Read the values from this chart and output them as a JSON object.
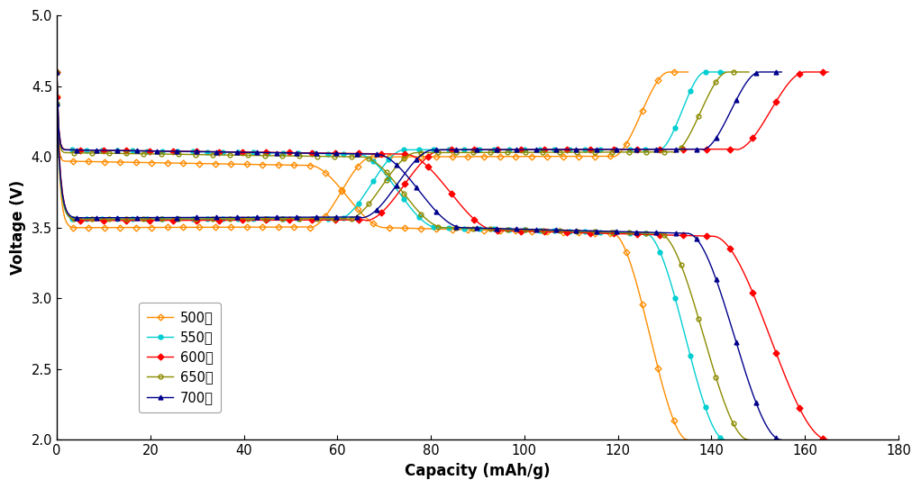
{
  "xlabel": "Capacity (mAh/g)",
  "ylabel": "Voltage (V)",
  "xlim": [
    0,
    180
  ],
  "ylim": [
    2.0,
    5.0
  ],
  "xticks": [
    0,
    20,
    40,
    60,
    80,
    100,
    120,
    140,
    160,
    180
  ],
  "yticks": [
    2.0,
    2.5,
    3.0,
    3.5,
    4.0,
    4.5,
    5.0
  ],
  "series": [
    {
      "label": "500도",
      "color": "#FF8C00",
      "marker": "D",
      "markerfacecolor": "none",
      "markersize": 3.5,
      "max_cap": 135,
      "charge": {
        "v_start": 4.43,
        "v_p1": 3.5,
        "v_p2": 4.0,
        "p1_end": 0.4,
        "p2_start": 0.5,
        "rise_start": 0.88,
        "v_end": 4.6
      },
      "discharge": {
        "v_start": 4.6,
        "v_p1": 3.97,
        "v_p2": 3.5,
        "p1_end": 0.4,
        "p2_start": 0.52,
        "drop_start": 0.88,
        "v_end": 2.0
      }
    },
    {
      "label": "550도",
      "color": "#00CED1",
      "marker": "o",
      "markerfacecolor": "#00CED1",
      "markersize": 3.5,
      "max_cap": 143,
      "charge": {
        "v_start": 4.38,
        "v_p1": 3.56,
        "v_p2": 4.05,
        "p1_end": 0.42,
        "p2_start": 0.52,
        "rise_start": 0.9,
        "v_end": 4.6
      },
      "discharge": {
        "v_start": 4.6,
        "v_p1": 4.05,
        "v_p2": 3.5,
        "p1_end": 0.45,
        "p2_start": 0.57,
        "drop_start": 0.88,
        "v_end": 2.0
      }
    },
    {
      "label": "600도",
      "color": "#FF0000",
      "marker": "D",
      "markerfacecolor": "#FF0000",
      "markersize": 3.5,
      "max_cap": 165,
      "charge": {
        "v_start": 4.42,
        "v_p1": 3.55,
        "v_p2": 4.05,
        "p1_end": 0.4,
        "p2_start": 0.5,
        "rise_start": 0.88,
        "v_end": 4.6
      },
      "discharge": {
        "v_start": 4.6,
        "v_p1": 4.05,
        "v_p2": 3.48,
        "p1_end": 0.45,
        "p2_start": 0.57,
        "drop_start": 0.85,
        "v_end": 2.0
      }
    },
    {
      "label": "650도",
      "color": "#8B8B00",
      "marker": "o",
      "markerfacecolor": "none",
      "markersize": 3.5,
      "max_cap": 148,
      "charge": {
        "v_start": 4.38,
        "v_p1": 3.56,
        "v_p2": 4.03,
        "p1_end": 0.42,
        "p2_start": 0.52,
        "rise_start": 0.89,
        "v_end": 4.6
      },
      "discharge": {
        "v_start": 4.6,
        "v_p1": 4.03,
        "v_p2": 3.5,
        "p1_end": 0.44,
        "p2_start": 0.56,
        "drop_start": 0.87,
        "v_end": 2.0
      }
    },
    {
      "label": "700도",
      "color": "#00008B",
      "marker": "^",
      "markerfacecolor": "#00008B",
      "markersize": 3.5,
      "max_cap": 155,
      "charge": {
        "v_start": 4.38,
        "v_p1": 3.57,
        "v_p2": 4.05,
        "p1_end": 0.42,
        "p2_start": 0.52,
        "rise_start": 0.89,
        "v_end": 4.6
      },
      "discharge": {
        "v_start": 4.6,
        "v_p1": 4.05,
        "v_p2": 3.5,
        "p1_end": 0.44,
        "p2_start": 0.56,
        "drop_start": 0.87,
        "v_end": 2.0
      }
    }
  ],
  "background_color": "#ffffff"
}
